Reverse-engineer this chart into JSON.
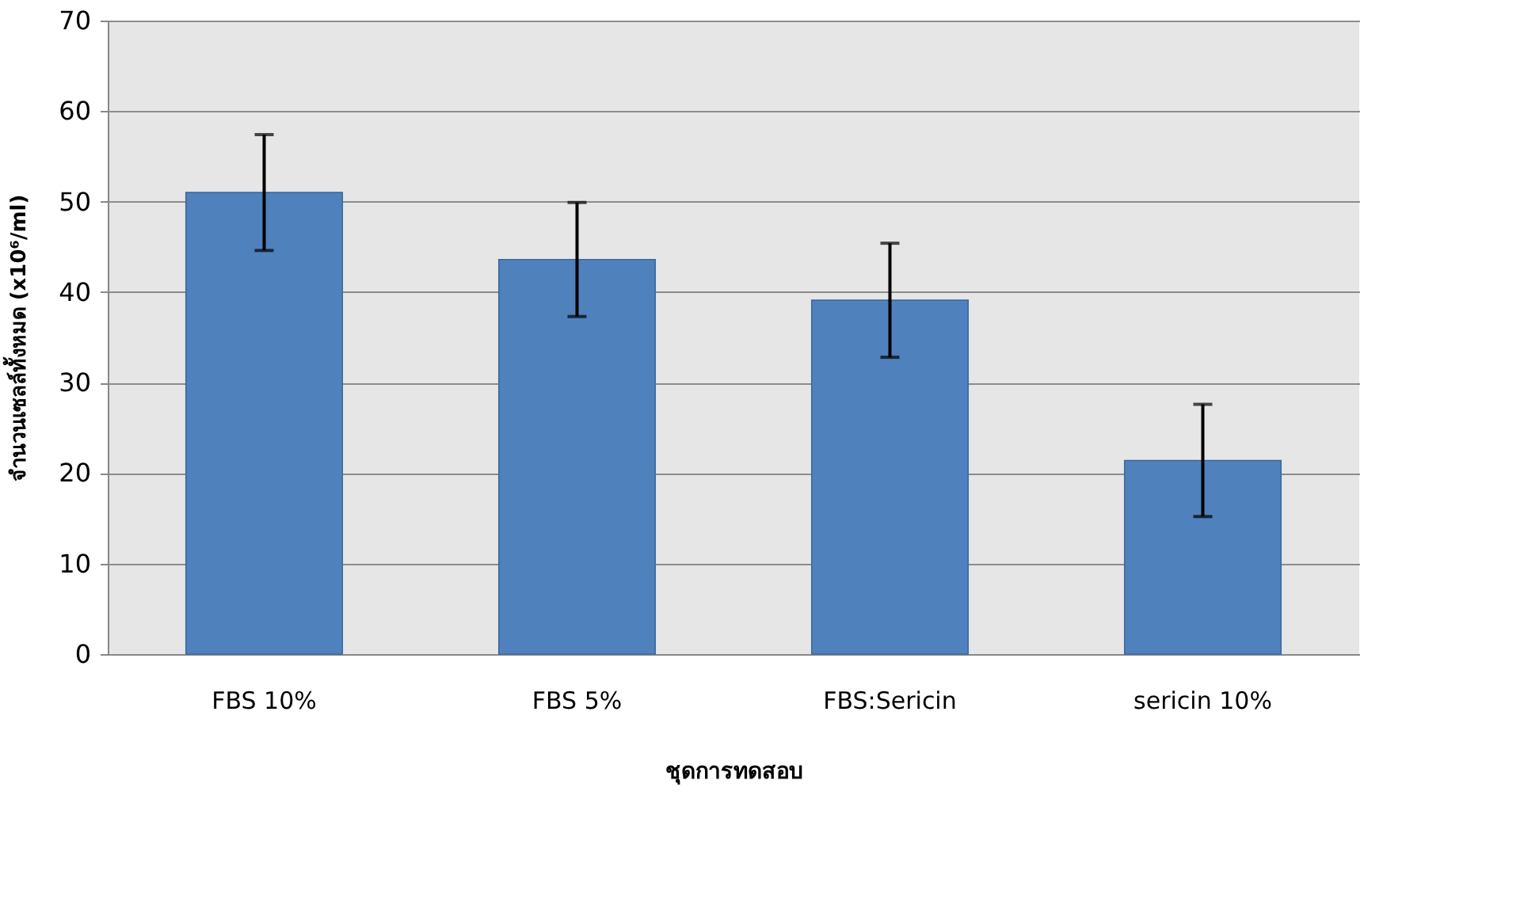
{
  "chart_data": {
    "type": "bar",
    "xlabel": "ชุดการทดสอบ",
    "ylabel": "จำนวนเซลล์ทั้งหมด (x10⁶/ml)",
    "categories": [
      "FBS 10%",
      "FBS 5%",
      "FBS:Sericin",
      "sericin 10%"
    ],
    "values": [
      51,
      43.6,
      39.1,
      21.4
    ],
    "errors": [
      6.4,
      6.3,
      6.3,
      6.2
    ],
    "color": "#4f81bd",
    "ylim": [
      0,
      70
    ],
    "yticks": [
      0,
      10,
      20,
      30,
      40,
      50,
      60,
      70
    ],
    "grid": "y"
  }
}
